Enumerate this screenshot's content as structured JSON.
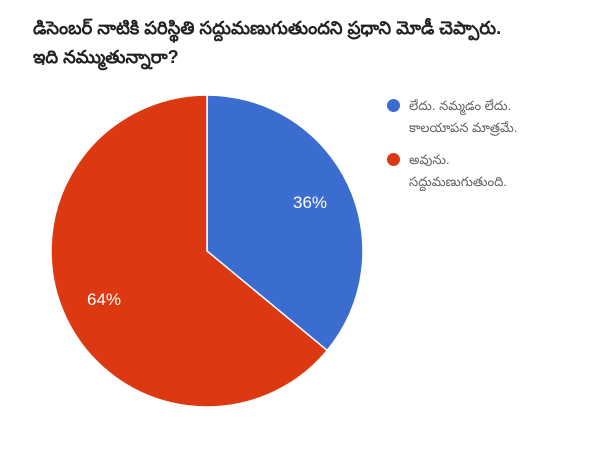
{
  "title": {
    "line1": "డిసెంబర్ నాటికి పరిస్థితి సద్దుమణుగుతుందని ప్రధాని మోడీ చెప్పారు.",
    "line2": "ఇది నమ్ముతున్నారా?"
  },
  "chart_data": {
    "type": "pie",
    "title": "డిసెంబర్ నాటికి పరిస్థితి సద్దుమణుగుతుందని ప్రధాని మోడీ చెప్పారు. ఇది నమ్ముతున్నారా?",
    "labels": [
      "లేదు. నమ్మడం లేదు. కాలయాపన మాత్రమే.",
      "అవును. సద్దుమణుగుతుంది."
    ],
    "values": [
      36,
      64
    ],
    "unit": "%",
    "slice_labels": [
      "36%",
      "64%"
    ],
    "colors": [
      "#3B6CD0",
      "#DC3912"
    ],
    "start_angle": "top",
    "direction": "clockwise",
    "legend_position": "right",
    "slice_label_color": "#FFFFFF",
    "background": "#FFFFFF"
  },
  "legend": {
    "items": [
      {
        "color": "#3B6CD0",
        "line1": "లేదు. నమ్మడం లేదు.",
        "line2": "కాలయాపన మాత్రమే."
      },
      {
        "color": "#DC3912",
        "line1": "అవును.",
        "line2": "సద్దుమణుగుతుంది."
      }
    ]
  }
}
